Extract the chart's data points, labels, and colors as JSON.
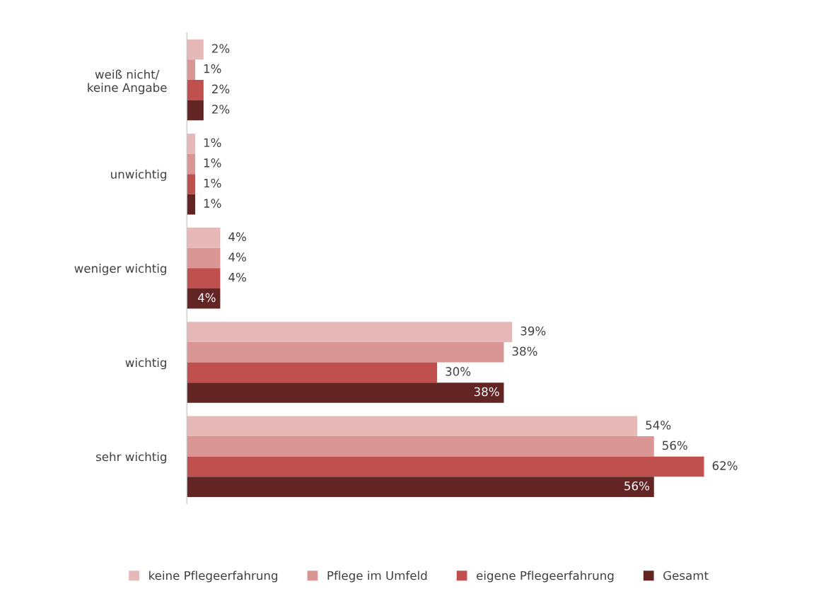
{
  "chart_data": {
    "type": "bar",
    "orientation": "horizontal",
    "legend": "bottom",
    "grid": false,
    "categories": [
      "weiß nicht/\nkeine Angabe",
      "unwichtig",
      "weniger wichtig",
      "wichtig",
      "sehr wichtig"
    ],
    "series": [
      {
        "name": "keine Pflegeerfahrung",
        "color": "#e6b9b8",
        "values": [
          2,
          1,
          4,
          39,
          54
        ],
        "value_labels": [
          "2%",
          "1%",
          "4%",
          "39%",
          "54%"
        ]
      },
      {
        "name": "Pflege im Umfeld",
        "color": "#d99694",
        "values": [
          1,
          1,
          4,
          38,
          56
        ],
        "value_labels": [
          "1%",
          "1%",
          "4%",
          "38%",
          "56%"
        ]
      },
      {
        "name": "eigene Pflegeerfahrung",
        "color": "#c0504d",
        "values": [
          2,
          1,
          4,
          30,
          62
        ],
        "value_labels": [
          "2%",
          "1%",
          "4%",
          "30%",
          "62%"
        ]
      },
      {
        "name": "Gesamt",
        "color": "#632523",
        "values": [
          2,
          1,
          4,
          38,
          56
        ],
        "value_labels": [
          "2%",
          "1%",
          "4%",
          "38%",
          "56%"
        ]
      }
    ]
  }
}
